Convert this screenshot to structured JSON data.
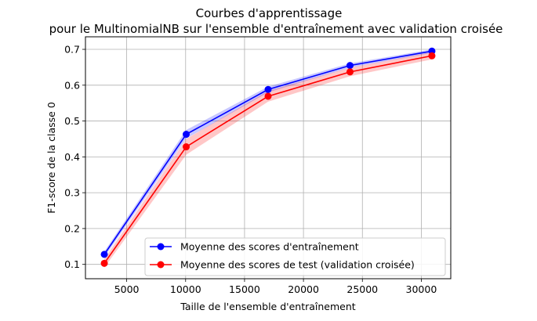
{
  "chart_data": {
    "type": "line",
    "title": "Courbes d'apprentissage",
    "subtitle": "pour le MultinomialNB sur l'ensemble d'entraînement avec validation croisée",
    "xlabel": "Taille de l'ensemble d'entraînement",
    "ylabel": "F1-score de la classe 0",
    "x": [
      3100,
      10050,
      17000,
      23950,
      30900
    ],
    "xlim": [
      1500,
      32500
    ],
    "ylim": [
      0.06,
      0.735
    ],
    "xticks": [
      5000,
      10000,
      15000,
      20000,
      25000,
      30000
    ],
    "yticks": [
      0.1,
      0.2,
      0.3,
      0.4,
      0.5,
      0.6,
      0.7
    ],
    "xtick_labels": [
      "5000",
      "10000",
      "15000",
      "20000",
      "25000",
      "30000"
    ],
    "ytick_labels": [
      "0.1",
      "0.2",
      "0.3",
      "0.4",
      "0.5",
      "0.6",
      "0.7"
    ],
    "grid": true,
    "legend_position": "lower-right",
    "series": [
      {
        "name": "Moyenne des scores d'entraînement",
        "color": "#0000ff",
        "values": [
          0.128,
          0.463,
          0.588,
          0.655,
          0.695
        ],
        "std": [
          0.008,
          0.012,
          0.008,
          0.006,
          0.005
        ]
      },
      {
        "name": "Moyenne des scores de test (validation croisée)",
        "color": "#ff0000",
        "values": [
          0.103,
          0.428,
          0.569,
          0.637,
          0.682
        ],
        "std": [
          0.012,
          0.022,
          0.015,
          0.012,
          0.01
        ]
      }
    ]
  }
}
